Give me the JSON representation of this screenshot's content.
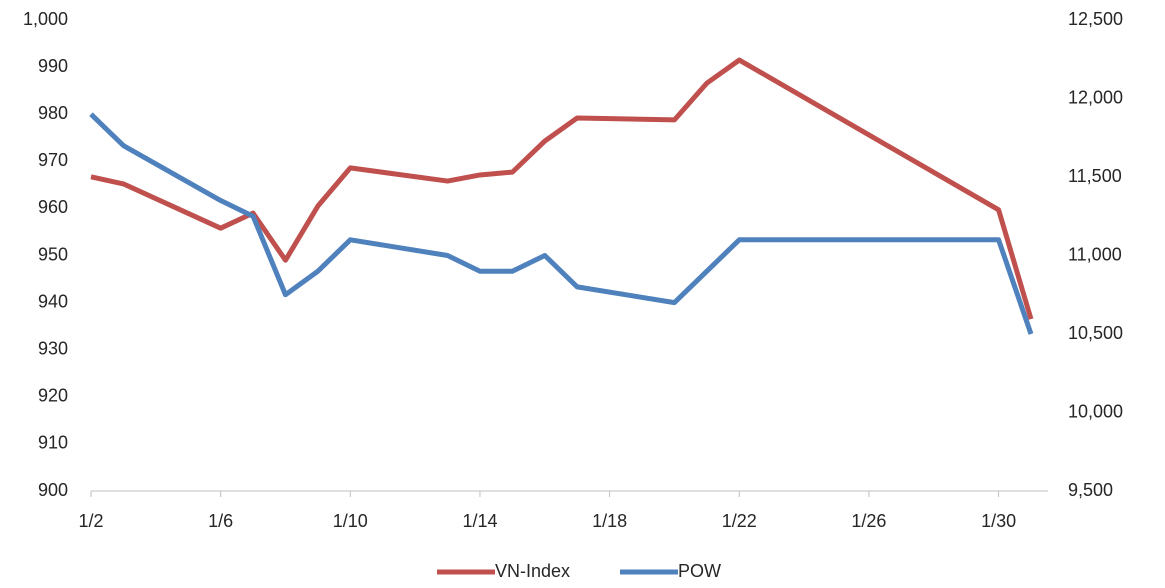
{
  "chart_data": {
    "type": "line",
    "x": [
      2,
      3,
      6,
      7,
      8,
      9,
      10,
      13,
      14,
      15,
      16,
      17,
      20,
      21,
      22,
      30,
      31
    ],
    "xlim": [
      2,
      31
    ],
    "xticks": [
      {
        "value": 2,
        "label": "1/2"
      },
      {
        "value": 6,
        "label": "1/6"
      },
      {
        "value": 10,
        "label": "1/10"
      },
      {
        "value": 14,
        "label": "1/14"
      },
      {
        "value": 18,
        "label": "1/18"
      },
      {
        "value": 22,
        "label": "1/22"
      },
      {
        "value": 26,
        "label": "1/26"
      },
      {
        "value": 30,
        "label": "1/30"
      }
    ],
    "ylim": [
      900,
      1000
    ],
    "yticks": [
      900,
      910,
      920,
      930,
      940,
      950,
      960,
      970,
      980,
      990,
      {
        "value": 1000,
        "label": "1,000"
      }
    ],
    "y2lim": [
      9500,
      12500
    ],
    "y2ticks": [
      {
        "value": 9500,
        "label": "9,500"
      },
      {
        "value": 10000,
        "label": "10,000"
      },
      {
        "value": 10500,
        "label": "10,500"
      },
      {
        "value": 11000,
        "label": "11,000"
      },
      {
        "value": 11500,
        "label": "11,500"
      },
      {
        "value": 12000,
        "label": "12,000"
      },
      {
        "value": 12500,
        "label": "12,500"
      }
    ],
    "legend": "bottom",
    "series": [
      {
        "name": "VN-Index",
        "color": "#c0504d",
        "values": [
          966.7,
          965.2,
          955.8,
          959,
          949,
          960.5,
          968.6,
          965.8,
          967.1,
          967.7,
          974.3,
          979.2,
          978.8,
          986.6,
          991.5,
          959.7,
          936.5
        ]
      },
      {
        "name": "POW",
        "color": "#4f81bd",
        "axis": "y2",
        "values": [
          11900,
          11700,
          11350,
          11250,
          10750,
          10900,
          11100,
          11000,
          10900,
          10900,
          11000,
          10800,
          10700,
          10900,
          11100,
          11100,
          10500
        ]
      }
    ]
  }
}
